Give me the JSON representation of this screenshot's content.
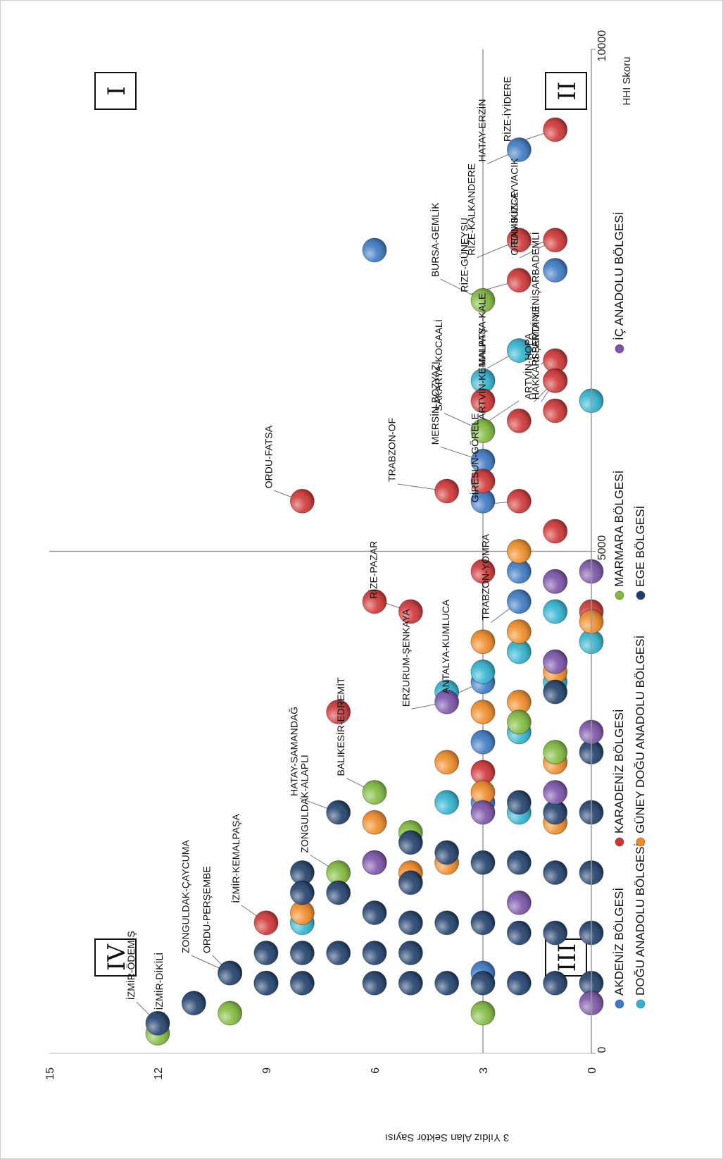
{
  "chart_data": {
    "type": "scatter",
    "title": "",
    "xlabel": "HHI Skoru",
    "ylabel": "3 Yıldız Alan Sektör Sayısı",
    "xlim": [
      0,
      10000
    ],
    "ylim": [
      0,
      15
    ],
    "xticks": [
      "0",
      "5000",
      "10000"
    ],
    "yticks": [
      "0",
      "3",
      "6",
      "9",
      "12",
      "15"
    ],
    "reference_lines": {
      "x": 5000,
      "y": 3
    },
    "quadrants": [
      {
        "label": "I"
      },
      {
        "label": "II"
      },
      {
        "label": "III"
      },
      {
        "label": "IV"
      }
    ],
    "legend": [
      {
        "name": "AKDENİZ BÖLGESİ",
        "color": "#3a78c2"
      },
      {
        "name": "DOĞU ANADOLU BÖLGESİ",
        "color": "#2fb2cf"
      },
      {
        "name": "KARADENİZ BÖLGESİ",
        "color": "#cf3333"
      },
      {
        "name": "GÜNEY DOĞU ANADOLU BÖLGESİ",
        "color": "#f08a24"
      },
      {
        "name": "MARMARA BÖLGESİ",
        "color": "#7fba3c"
      },
      {
        "name": "EGE BÖLGESİ",
        "color": "#1f3f6b"
      },
      {
        "name": "İÇ ANADOLU BÖLGESİ",
        "color": "#7a52a8"
      }
    ],
    "series": [
      {
        "name": "AKDENİZ BÖLGESİ",
        "color": "#3a78c2",
        "points": [
          {
            "x": 7800,
            "y": 1
          },
          {
            "x": 9000,
            "y": 2
          },
          {
            "x": 3700,
            "y": 3
          },
          {
            "x": 5900,
            "y": 3
          },
          {
            "x": 8000,
            "y": 6
          },
          {
            "x": 2500,
            "y": 3
          },
          {
            "x": 4800,
            "y": 2
          },
          {
            "x": 800,
            "y": 3
          },
          {
            "x": 5500,
            "y": 3
          },
          {
            "x": 6700,
            "y": 1
          },
          {
            "x": 4500,
            "y": 2
          },
          {
            "x": 3100,
            "y": 3
          }
        ]
      },
      {
        "name": "DOĞU ANADOLU BÖLGESİ",
        "color": "#2fb2cf",
        "points": [
          {
            "x": 7000,
            "y": 2
          },
          {
            "x": 6700,
            "y": 3
          },
          {
            "x": 4400,
            "y": 1
          },
          {
            "x": 3700,
            "y": 1
          },
          {
            "x": 1900,
            "y": 6
          },
          {
            "x": 2500,
            "y": 4
          },
          {
            "x": 3200,
            "y": 2
          },
          {
            "x": 3800,
            "y": 3
          },
          {
            "x": 4000,
            "y": 2
          },
          {
            "x": 1300,
            "y": 8
          },
          {
            "x": 700,
            "y": 9
          },
          {
            "x": 2400,
            "y": 2
          },
          {
            "x": 6500,
            "y": 0
          },
          {
            "x": 3600,
            "y": 4
          },
          {
            "x": 4100,
            "y": 0
          }
        ]
      },
      {
        "name": "KARADENİZ BÖLGESİ",
        "color": "#cf3333",
        "points": [
          {
            "x": 1300,
            "y": 9
          },
          {
            "x": 800,
            "y": 10
          },
          {
            "x": 3400,
            "y": 7
          },
          {
            "x": 4400,
            "y": 5
          },
          {
            "x": 5500,
            "y": 8
          },
          {
            "x": 4500,
            "y": 6
          },
          {
            "x": 5600,
            "y": 4
          },
          {
            "x": 4800,
            "y": 3
          },
          {
            "x": 5500,
            "y": 2
          },
          {
            "x": 6300,
            "y": 2
          },
          {
            "x": 6500,
            "y": 3
          },
          {
            "x": 6900,
            "y": 1
          },
          {
            "x": 6700,
            "y": 1
          },
          {
            "x": 8100,
            "y": 2
          },
          {
            "x": 8100,
            "y": 1
          },
          {
            "x": 6400,
            "y": 1
          },
          {
            "x": 9200,
            "y": 1
          },
          {
            "x": 5200,
            "y": 1
          },
          {
            "x": 7700,
            "y": 2
          },
          {
            "x": 2800,
            "y": 3
          },
          {
            "x": 3900,
            "y": 1
          },
          {
            "x": 4400,
            "y": 0
          },
          {
            "x": 5700,
            "y": 3
          }
        ]
      },
      {
        "name": "GÜNEY DOĞU ANADOLU BÖLGESİ",
        "color": "#f08a24",
        "points": [
          {
            "x": 2300,
            "y": 6
          },
          {
            "x": 3400,
            "y": 3
          },
          {
            "x": 5000,
            "y": 2
          },
          {
            "x": 1400,
            "y": 8
          },
          {
            "x": 2900,
            "y": 4
          },
          {
            "x": 3500,
            "y": 2
          },
          {
            "x": 2300,
            "y": 1
          },
          {
            "x": 1800,
            "y": 5
          },
          {
            "x": 4200,
            "y": 2
          },
          {
            "x": 2600,
            "y": 3
          },
          {
            "x": 2900,
            "y": 1
          },
          {
            "x": 4300,
            "y": 0
          },
          {
            "x": 3800,
            "y": 1
          },
          {
            "x": 1900,
            "y": 4
          },
          {
            "x": 4100,
            "y": 3
          }
        ]
      },
      {
        "name": "MARMARA BÖLGESİ",
        "color": "#7fba3c",
        "points": [
          {
            "x": 6200,
            "y": 3
          },
          {
            "x": 7500,
            "y": 3
          },
          {
            "x": 200,
            "y": 12
          },
          {
            "x": 400,
            "y": 10
          },
          {
            "x": 2600,
            "y": 6
          },
          {
            "x": 1800,
            "y": 7
          },
          {
            "x": 400,
            "y": 3
          },
          {
            "x": 4700,
            "y": 1
          },
          {
            "x": 3300,
            "y": 2
          },
          {
            "x": 3000,
            "y": 1
          },
          {
            "x": 2200,
            "y": 5
          }
        ]
      },
      {
        "name": "EGE BÖLGESİ",
        "color": "#1f3f6b",
        "points": [
          {
            "x": 300,
            "y": 12
          },
          {
            "x": 500,
            "y": 11
          },
          {
            "x": 800,
            "y": 10
          },
          {
            "x": 2400,
            "y": 7
          },
          {
            "x": 1800,
            "y": 8
          },
          {
            "x": 3600,
            "y": 1
          },
          {
            "x": 3000,
            "y": 0
          },
          {
            "x": 1600,
            "y": 8
          },
          {
            "x": 700,
            "y": 9
          },
          {
            "x": 1000,
            "y": 9
          },
          {
            "x": 1300,
            "y": 5
          },
          {
            "x": 1700,
            "y": 5
          },
          {
            "x": 2100,
            "y": 5
          },
          {
            "x": 700,
            "y": 6
          },
          {
            "x": 1000,
            "y": 6
          },
          {
            "x": 1400,
            "y": 6
          },
          {
            "x": 1600,
            "y": 7
          },
          {
            "x": 1000,
            "y": 7
          },
          {
            "x": 700,
            "y": 8
          },
          {
            "x": 1000,
            "y": 8
          },
          {
            "x": 700,
            "y": 5
          },
          {
            "x": 1000,
            "y": 5
          },
          {
            "x": 700,
            "y": 4
          },
          {
            "x": 1300,
            "y": 4
          },
          {
            "x": 2000,
            "y": 4
          },
          {
            "x": 700,
            "y": 3
          },
          {
            "x": 1300,
            "y": 3
          },
          {
            "x": 1900,
            "y": 3
          },
          {
            "x": 700,
            "y": 2
          },
          {
            "x": 1200,
            "y": 2
          },
          {
            "x": 1900,
            "y": 2
          },
          {
            "x": 2500,
            "y": 2
          },
          {
            "x": 700,
            "y": 1
          },
          {
            "x": 1200,
            "y": 1
          },
          {
            "x": 1800,
            "y": 1
          },
          {
            "x": 2400,
            "y": 1
          },
          {
            "x": 700,
            "y": 0
          },
          {
            "x": 1200,
            "y": 0
          },
          {
            "x": 1800,
            "y": 0
          },
          {
            "x": 2400,
            "y": 0
          }
        ]
      },
      {
        "name": "İÇ ANADOLU BÖLGESİ",
        "color": "#7a52a8",
        "points": [
          {
            "x": 3500,
            "y": 4
          },
          {
            "x": 4700,
            "y": 1
          },
          {
            "x": 2600,
            "y": 1
          },
          {
            "x": 1900,
            "y": 6
          },
          {
            "x": 4800,
            "y": 0
          },
          {
            "x": 3200,
            "y": 0
          },
          {
            "x": 500,
            "y": 0
          },
          {
            "x": 3900,
            "y": 1
          },
          {
            "x": 2400,
            "y": 3
          },
          {
            "x": 1500,
            "y": 2
          }
        ]
      }
    ],
    "labels": [
      {
        "text": "İZMİR-ÖDEMİŞ",
        "x": 300,
        "y": 12
      },
      {
        "text": "İZMİR-DİKİLİ",
        "x": 200,
        "y": 12
      },
      {
        "text": "ZONGULDAK-ÇAYCUMA",
        "x": 800,
        "y": 10
      },
      {
        "text": "ORDU-PERŞEMBE",
        "x": 800,
        "y": 10
      },
      {
        "text": "İZMİR-KEMALPAŞA",
        "x": 1300,
        "y": 9
      },
      {
        "text": "ZONGULDAK-ALAPLI",
        "x": 1800,
        "y": 7
      },
      {
        "text": "HATAY-SAMANDAĞ",
        "x": 2400,
        "y": 7
      },
      {
        "text": "BALIKESİR-EDREMİT",
        "x": 2600,
        "y": 6
      },
      {
        "text": "RİZE-PAZAR",
        "x": 4400,
        "y": 5
      },
      {
        "text": "ORDU-FATSA",
        "x": 5500,
        "y": 8
      },
      {
        "text": "ERZURUM-ŞENKAYA",
        "x": 3500,
        "y": 4
      },
      {
        "text": "ANTALYA-KUMLUCA",
        "x": 3700,
        "y": 3
      },
      {
        "text": "TRABZON-YOMRA",
        "x": 4500,
        "y": 2
      },
      {
        "text": "TRABZON-OF",
        "x": 5600,
        "y": 4
      },
      {
        "text": "GİRESUN-GÖRELE",
        "x": 5500,
        "y": 2
      },
      {
        "text": "MERSİN-BOZYAZI",
        "x": 5900,
        "y": 3
      },
      {
        "text": "SAKARYA-KOCAALİ",
        "x": 6200,
        "y": 3
      },
      {
        "text": "BURSA-GEMLİK",
        "x": 7500,
        "y": 3
      },
      {
        "text": "ARTVİN-HOPA",
        "x": 6700,
        "y": 1
      },
      {
        "text": "ARTVİN-KEMALPAŞA",
        "x": 6500,
        "y": 2
      },
      {
        "text": "MALATYA-KALE",
        "x": 7000,
        "y": 2
      },
      {
        "text": "HAKKARİ-ŞEMDİNLİ",
        "x": 6700,
        "y": 1
      },
      {
        "text": "RİZE-GÜNEYSU",
        "x": 7700,
        "y": 2
      },
      {
        "text": "ORDU-İKİZCE",
        "x": 8100,
        "y": 1
      },
      {
        "text": "ISPARTA-YENİŞARBADEMLİ",
        "x": 7000,
        "y": 1
      },
      {
        "text": "SAMSUN-AYVACIK",
        "x": 8100,
        "y": 1
      },
      {
        "text": "RİZE-KALKANDERE",
        "x": 8100,
        "y": 2
      },
      {
        "text": "HATAY-ERZİN",
        "x": 9000,
        "y": 2
      },
      {
        "text": "RİZE-İYİDERE",
        "x": 9200,
        "y": 1
      }
    ]
  }
}
